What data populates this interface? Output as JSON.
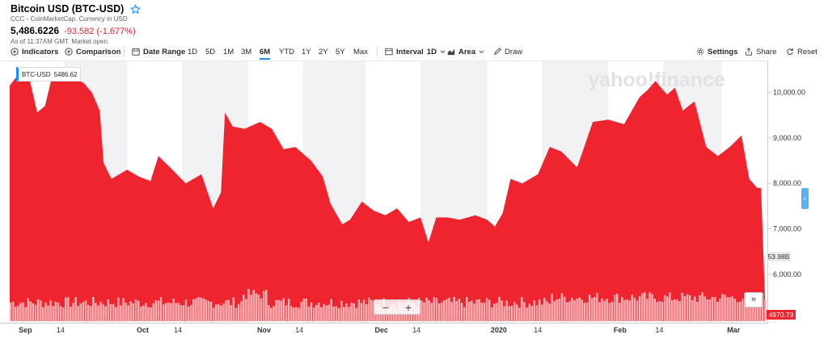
{
  "header": {
    "title": "Bitcoin USD (BTC-USD)",
    "subtitle": "CCC - CoinMarketCap. Currency in USD",
    "price": "5,486.6226",
    "change": "-93.582 (-1.677%)",
    "as_of": "As of 11:37AM GMT. Market open."
  },
  "toolbar": {
    "indicators": "Indicators",
    "comparison": "Comparison",
    "date_range": "Date Range",
    "ranges": [
      "1D",
      "5D",
      "1M",
      "3M",
      "6M",
      "YTD",
      "1Y",
      "2Y",
      "5Y",
      "Max"
    ],
    "active_range": "6M",
    "interval_label": "Interval",
    "interval_value": "1D",
    "chart_type": "Area",
    "draw": "Draw",
    "settings": "Settings",
    "share": "Share",
    "reset": "Reset"
  },
  "legend": {
    "symbol": "BTC-USD",
    "value": "5486.62"
  },
  "watermark": "yahoo!finance",
  "controls": {
    "zoom_out": "−",
    "zoom_in": "+",
    "forward": "»",
    "collapse": "‹"
  },
  "colors": {
    "series": "#f0242f",
    "volume": "#f4a3a7",
    "band": "#f2f2f4",
    "accent": "#188fff"
  },
  "chart_data": {
    "type": "area",
    "series_name": "BTC-USD",
    "y_ticks": [
      "10,000.00",
      "9,000.00",
      "8,000.00",
      "7,000.00",
      "6,000.00"
    ],
    "y_tick_values": [
      10000,
      9000,
      8000,
      7000,
      6000
    ],
    "x_labels": [
      "Sep",
      "14",
      "Oct",
      "14",
      "Nov",
      "14",
      "Dec",
      "14",
      "2020",
      "14",
      "Feb",
      "14",
      "Mar"
    ],
    "current_tag": "53.98B",
    "low_tag": "4970.79",
    "ylim": [
      4970.79,
      10700
    ],
    "dates_start": "2019-09-01",
    "dates_end": "2020-03-12",
    "points": [
      [
        "2019-09-01",
        10150
      ],
      [
        "2019-09-04",
        10480
      ],
      [
        "2019-09-06",
        10320
      ],
      [
        "2019-09-08",
        9560
      ],
      [
        "2019-09-10",
        9700
      ],
      [
        "2019-09-12",
        10400
      ],
      [
        "2019-09-14",
        10300
      ],
      [
        "2019-09-17",
        10350
      ],
      [
        "2019-09-20",
        10200
      ],
      [
        "2019-09-22",
        10000
      ],
      [
        "2019-09-24",
        9600
      ],
      [
        "2019-09-25",
        8450
      ],
      [
        "2019-09-27",
        8100
      ],
      [
        "2019-10-01",
        8300
      ],
      [
        "2019-10-04",
        8150
      ],
      [
        "2019-10-07",
        8050
      ],
      [
        "2019-10-09",
        8600
      ],
      [
        "2019-10-12",
        8350
      ],
      [
        "2019-10-16",
        8000
      ],
      [
        "2019-10-20",
        8200
      ],
      [
        "2019-10-23",
        7450
      ],
      [
        "2019-10-25",
        7800
      ],
      [
        "2019-10-26",
        9550
      ],
      [
        "2019-10-28",
        9250
      ],
      [
        "2019-10-31",
        9200
      ],
      [
        "2019-11-04",
        9350
      ],
      [
        "2019-11-07",
        9200
      ],
      [
        "2019-11-10",
        8750
      ],
      [
        "2019-11-13",
        8800
      ],
      [
        "2019-11-17",
        8500
      ],
      [
        "2019-11-20",
        8150
      ],
      [
        "2019-11-22",
        7550
      ],
      [
        "2019-11-25",
        7100
      ],
      [
        "2019-11-27",
        7200
      ],
      [
        "2019-11-30",
        7600
      ],
      [
        "2019-12-03",
        7400
      ],
      [
        "2019-12-06",
        7300
      ],
      [
        "2019-12-09",
        7450
      ],
      [
        "2019-12-12",
        7150
      ],
      [
        "2019-12-15",
        7250
      ],
      [
        "2019-12-17",
        6700
      ],
      [
        "2019-12-19",
        7250
      ],
      [
        "2019-12-22",
        7250
      ],
      [
        "2019-12-25",
        7200
      ],
      [
        "2019-12-29",
        7300
      ],
      [
        "2020-01-01",
        7200
      ],
      [
        "2020-01-03",
        7050
      ],
      [
        "2020-01-05",
        7350
      ],
      [
        "2020-01-07",
        8100
      ],
      [
        "2020-01-10",
        8000
      ],
      [
        "2020-01-14",
        8200
      ],
      [
        "2020-01-17",
        8800
      ],
      [
        "2020-01-20",
        8700
      ],
      [
        "2020-01-24",
        8350
      ],
      [
        "2020-01-28",
        9350
      ],
      [
        "2020-02-01",
        9400
      ],
      [
        "2020-02-05",
        9300
      ],
      [
        "2020-02-09",
        9900
      ],
      [
        "2020-02-11",
        10050
      ],
      [
        "2020-02-13",
        10250
      ],
      [
        "2020-02-16",
        9950
      ],
      [
        "2020-02-18",
        10100
      ],
      [
        "2020-02-20",
        9600
      ],
      [
        "2020-02-23",
        9800
      ],
      [
        "2020-02-26",
        8800
      ],
      [
        "2020-02-29",
        8600
      ],
      [
        "2020-03-03",
        8800
      ],
      [
        "2020-03-06",
        9050
      ],
      [
        "2020-03-08",
        8100
      ],
      [
        "2020-03-10",
        7900
      ],
      [
        "2020-03-11",
        7900
      ],
      [
        "2020-03-12",
        5486.62
      ]
    ]
  }
}
